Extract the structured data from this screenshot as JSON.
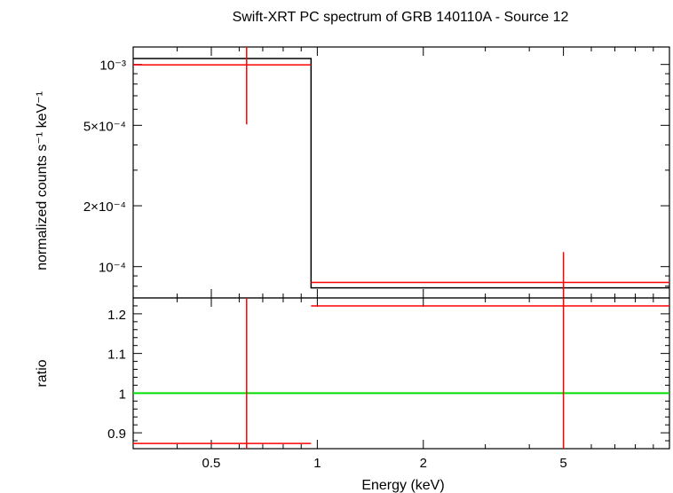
{
  "chart_data": {
    "type": "line",
    "title": "Swift-XRT PC spectrum of GRB 140110A - Source 12",
    "xlabel": "Energy (keV)",
    "x_scale": "log",
    "xlim": [
      0.3,
      10
    ],
    "x_ticks": [
      {
        "value": 0.5,
        "label": "0.5"
      },
      {
        "value": 1,
        "label": "1"
      },
      {
        "value": 2,
        "label": "2"
      },
      {
        "value": 5,
        "label": "5"
      }
    ],
    "panels": [
      {
        "id": "spectrum",
        "ylabel": "normalized counts s⁻¹ keV⁻¹",
        "y_scale": "log",
        "ylim": [
          7e-05,
          0.00122
        ],
        "y_ticks": [
          {
            "value": 0.001,
            "label": "10⁻³"
          },
          {
            "value": 0.0005,
            "label": "5×10⁻⁴"
          },
          {
            "value": 0.0002,
            "label": "2×10⁻⁴"
          },
          {
            "value": 0.0001,
            "label": "10⁻⁴"
          }
        ],
        "data": {
          "color": "#ff0000",
          "points": [
            {
              "x": 0.63,
              "xlo": 0.3,
              "xhi": 0.96,
              "y": 0.000995,
              "ylo": 0.000505,
              "yhi": 0.00122
            },
            {
              "x": 5.0,
              "xlo": 0.96,
              "xhi": 10,
              "y": 8.35e-05,
              "ylo": 7e-05,
              "yhi": 0.000118
            }
          ]
        },
        "model": {
          "color": "#000000",
          "steps": [
            {
              "xlo": 0.3,
              "xhi": 0.96,
              "y": 0.00107
            },
            {
              "xlo": 0.96,
              "xhi": 10,
              "y": 7.85e-05
            }
          ]
        }
      },
      {
        "id": "ratio",
        "ylabel": "ratio",
        "y_scale": "linear",
        "ylim": [
          0.86,
          1.24
        ],
        "y_ticks": [
          {
            "value": 0.9,
            "label": "0.9"
          },
          {
            "value": 1,
            "label": "1"
          },
          {
            "value": 1.1,
            "label": "1.1"
          },
          {
            "value": 1.2,
            "label": "1.2"
          }
        ],
        "reference_line": {
          "y": 1,
          "color": "#00dd00"
        },
        "data": {
          "color": "#ff0000",
          "points": [
            {
              "x": 0.63,
              "xlo": 0.3,
              "xhi": 0.96,
              "y": 0.873,
              "ylo": 0.86,
              "yhi": 1.24
            },
            {
              "x": 5.0,
              "xlo": 0.96,
              "xhi": 10,
              "y": 1.22,
              "ylo": 0.86,
              "yhi": 1.24
            }
          ]
        }
      }
    ]
  }
}
